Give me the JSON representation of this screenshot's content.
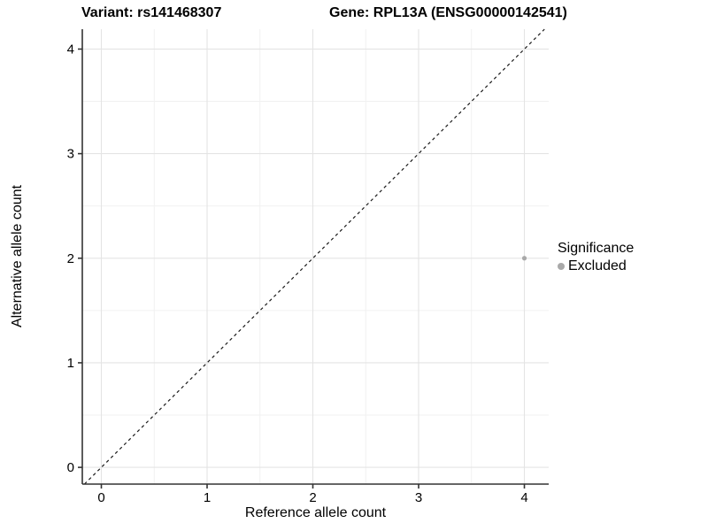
{
  "chart_data": {
    "type": "scatter",
    "title_left": "Variant: rs141468307",
    "title_right": "Gene: RPL13A (ENSG00000142541)",
    "xlabel": "Reference allele count",
    "ylabel": "Alternative allele count",
    "xlim": [
      -0.18,
      4.23
    ],
    "ylim": [
      -0.16,
      4.19
    ],
    "x_ticks": [
      0,
      1,
      2,
      3,
      4
    ],
    "y_ticks": [
      0,
      1,
      2,
      3,
      4
    ],
    "minor_ticks": [
      0.5,
      1.5,
      2.5,
      3.5
    ],
    "grid": true,
    "legend": {
      "position": "right",
      "title": "Significance",
      "items": [
        {
          "label": "Excluded",
          "color": "#a9a9a9"
        }
      ]
    },
    "series": [
      {
        "name": "Excluded",
        "color": "#a9a9a9",
        "points": [
          {
            "x": 4,
            "y": 2
          }
        ]
      }
    ],
    "reference_line": {
      "kind": "identity",
      "equation": "y = x",
      "style": "dashed",
      "color": "#1a1a1a"
    },
    "style": {
      "background": "#ffffff",
      "grid_major_color": "#e4e4e4",
      "grid_minor_color": "#f1f1f1",
      "axis_color": "#333333",
      "tick_label_color": "#000000",
      "point_color": "#a9a9a9"
    }
  }
}
